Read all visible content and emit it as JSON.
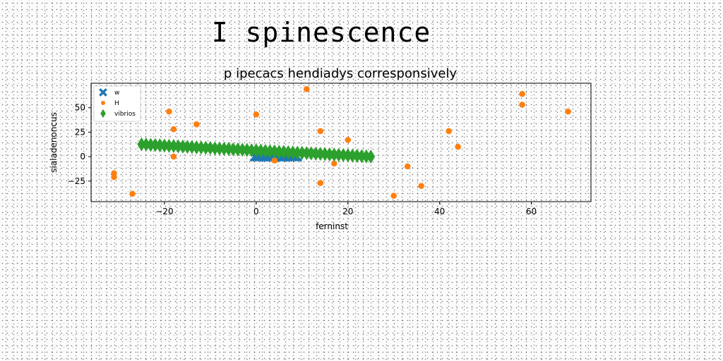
{
  "page": {
    "title": "I spinescence"
  },
  "chart_data": {
    "type": "scatter",
    "title": "p ipecacs hendiadys corresponsively",
    "xlabel": "ferninst",
    "ylabel": "sialadenoncus",
    "xlim": [
      -36,
      73
    ],
    "ylim": [
      -46,
      75
    ],
    "xticks": [
      -20,
      0,
      20,
      40,
      60
    ],
    "yticks": [
      -25,
      0,
      25,
      50
    ],
    "grid": false,
    "legend_position": "top-left",
    "series": [
      {
        "name": "w",
        "marker": "x",
        "color": "#1f77b4",
        "x": [
          -0.3,
          0.2,
          0.7,
          1.2,
          1.7,
          2.1,
          2.6,
          3.1,
          3.6,
          4.1,
          4.5,
          5.0,
          5.5,
          6.0,
          6.5,
          6.9,
          7.4,
          7.9,
          8.4,
          8.9
        ],
        "y": [
          0,
          0,
          0,
          0,
          0,
          0,
          0,
          0,
          0,
          0,
          0,
          0,
          0,
          0,
          0,
          0,
          0,
          0,
          0,
          0
        ]
      },
      {
        "name": "H",
        "marker": "o",
        "color": "#ff7f0e",
        "x": [
          -31,
          -31,
          -27,
          -19,
          -18,
          -18,
          -13,
          0,
          4,
          11,
          14,
          14,
          17,
          20,
          30,
          33,
          36,
          42,
          44,
          58,
          58,
          68
        ],
        "y": [
          -17,
          -21,
          -38,
          46,
          28,
          0,
          33,
          43,
          -4,
          69,
          26,
          -27,
          -7,
          17,
          -40,
          -10,
          -30,
          26,
          10,
          64,
          53,
          46
        ]
      },
      {
        "name": "vibrios",
        "marker": "d",
        "color": "#2ca02c",
        "x": [
          -25,
          -24,
          -23,
          -22,
          -21,
          -20,
          -19,
          -18,
          -17,
          -16,
          -15,
          -14,
          -13,
          -12,
          -11,
          -10,
          -9,
          -8,
          -7,
          -6,
          -5,
          -4,
          -3,
          -2,
          -1,
          0,
          1,
          2,
          3,
          4,
          5,
          6,
          7,
          8,
          9,
          10,
          11,
          12,
          13,
          14,
          15,
          16,
          17,
          18,
          19,
          20,
          21,
          22,
          23,
          24,
          25
        ],
        "y": [
          12.5,
          12.3,
          12.0,
          11.8,
          11.5,
          11.3,
          11.0,
          10.8,
          10.5,
          10.3,
          10.0,
          9.8,
          9.5,
          9.3,
          9.0,
          8.8,
          8.5,
          8.3,
          8.0,
          7.8,
          7.5,
          7.3,
          7.0,
          6.8,
          6.5,
          6.3,
          6.0,
          5.8,
          5.5,
          5.3,
          5.0,
          4.8,
          4.5,
          4.3,
          4.0,
          3.8,
          3.5,
          3.3,
          3.0,
          2.8,
          2.5,
          2.3,
          2.0,
          1.8,
          1.5,
          1.3,
          1.0,
          0.8,
          0.5,
          0.3,
          0.0
        ]
      }
    ]
  }
}
